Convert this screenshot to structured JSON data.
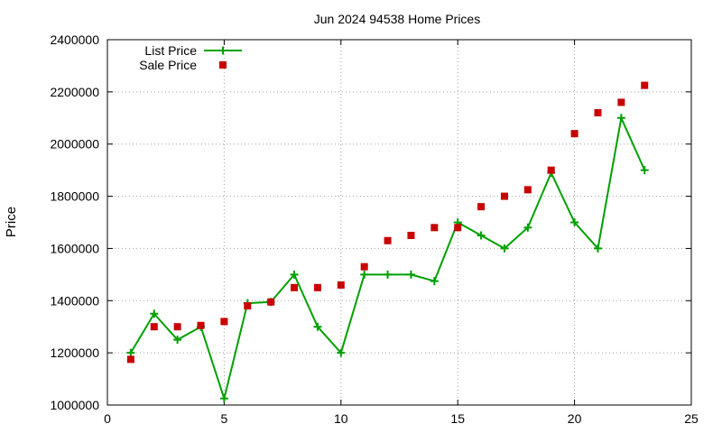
{
  "chart_data": {
    "type": "line",
    "title": "Jun 2024 94538 Home Prices",
    "xlabel": "",
    "ylabel": "Price",
    "xlim": [
      0,
      25
    ],
    "ylim": [
      1000000,
      2400000
    ],
    "xticks": [
      "0",
      "5",
      "10",
      "15",
      "20",
      "25"
    ],
    "yticks": [
      "1000000",
      "1200000",
      "1400000",
      "1600000",
      "1800000",
      "2000000",
      "2200000",
      "2400000"
    ],
    "grid": true,
    "legend_position": "top-left",
    "series": [
      {
        "name": "List Price",
        "style": "line-with-plus-markers",
        "color": "#00a000",
        "x": [
          1,
          2,
          3,
          4,
          5,
          6,
          7,
          8,
          9,
          10,
          11,
          12,
          13,
          14,
          15,
          16,
          17,
          18,
          19,
          20,
          21,
          22,
          23
        ],
        "y": [
          1200000,
          1350000,
          1250000,
          1300000,
          1025000,
          1390000,
          1395000,
          1500000,
          1300000,
          1200000,
          1500000,
          1500000,
          1500000,
          1475000,
          1700000,
          1650000,
          1600000,
          1680000,
          1890000,
          1700000,
          1600000,
          2100000,
          1900000
        ]
      },
      {
        "name": "Sale Price",
        "style": "square-markers",
        "color": "#c80000",
        "x": [
          1,
          2,
          3,
          4,
          5,
          6,
          7,
          8,
          9,
          10,
          11,
          12,
          13,
          14,
          15,
          16,
          17,
          18,
          19,
          20,
          21,
          22,
          23
        ],
        "y": [
          1175000,
          1300000,
          1300000,
          1305000,
          1320000,
          1380000,
          1395000,
          1450000,
          1450000,
          1460000,
          1530000,
          1630000,
          1650000,
          1680000,
          1680000,
          1760000,
          1800000,
          1825000,
          1900000,
          2040000,
          2120000,
          2160000,
          2225000
        ]
      }
    ]
  }
}
